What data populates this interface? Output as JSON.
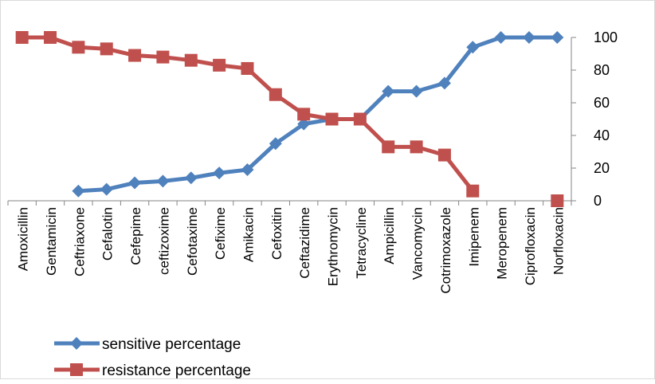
{
  "chart_data": {
    "type": "line",
    "categories": [
      "Amoxicillin",
      "Gentamicin",
      "Ceftriaxone",
      "Cefalotin",
      "Cefepime",
      "ceftizoxime",
      "Cefotaxime",
      "Cefixime",
      "Amikacin",
      "Cefoxitin",
      "Ceftazidime",
      "Erythromycin",
      "Tetracycline",
      "Ampicillin",
      "Vancomycin",
      "Cotrimoxazole",
      "Imipenem",
      "Meropenem",
      "Ciprofloxacin",
      "Norfloxacin"
    ],
    "series": [
      {
        "name": "sensitive percentage",
        "color": "#4f81bd",
        "marker": "diamond",
        "values": [
          null,
          null,
          6,
          7,
          11,
          12,
          14,
          17,
          19,
          35,
          47,
          50,
          50,
          67,
          67,
          72,
          94,
          100,
          100,
          100
        ]
      },
      {
        "name": "resistance percentage",
        "color": "#c0504d",
        "marker": "square",
        "values": [
          100,
          100,
          94,
          93,
          89,
          88,
          86,
          83,
          81,
          65,
          53,
          50,
          50,
          33,
          33,
          28,
          6,
          null,
          null,
          0
        ]
      }
    ],
    "y_axis": {
      "position": "right",
      "min": 0,
      "max": 100,
      "ticks": [
        "0",
        "20",
        "40",
        "60",
        "80",
        "100"
      ]
    },
    "gridlines": false,
    "legend_position": "bottom-left"
  }
}
